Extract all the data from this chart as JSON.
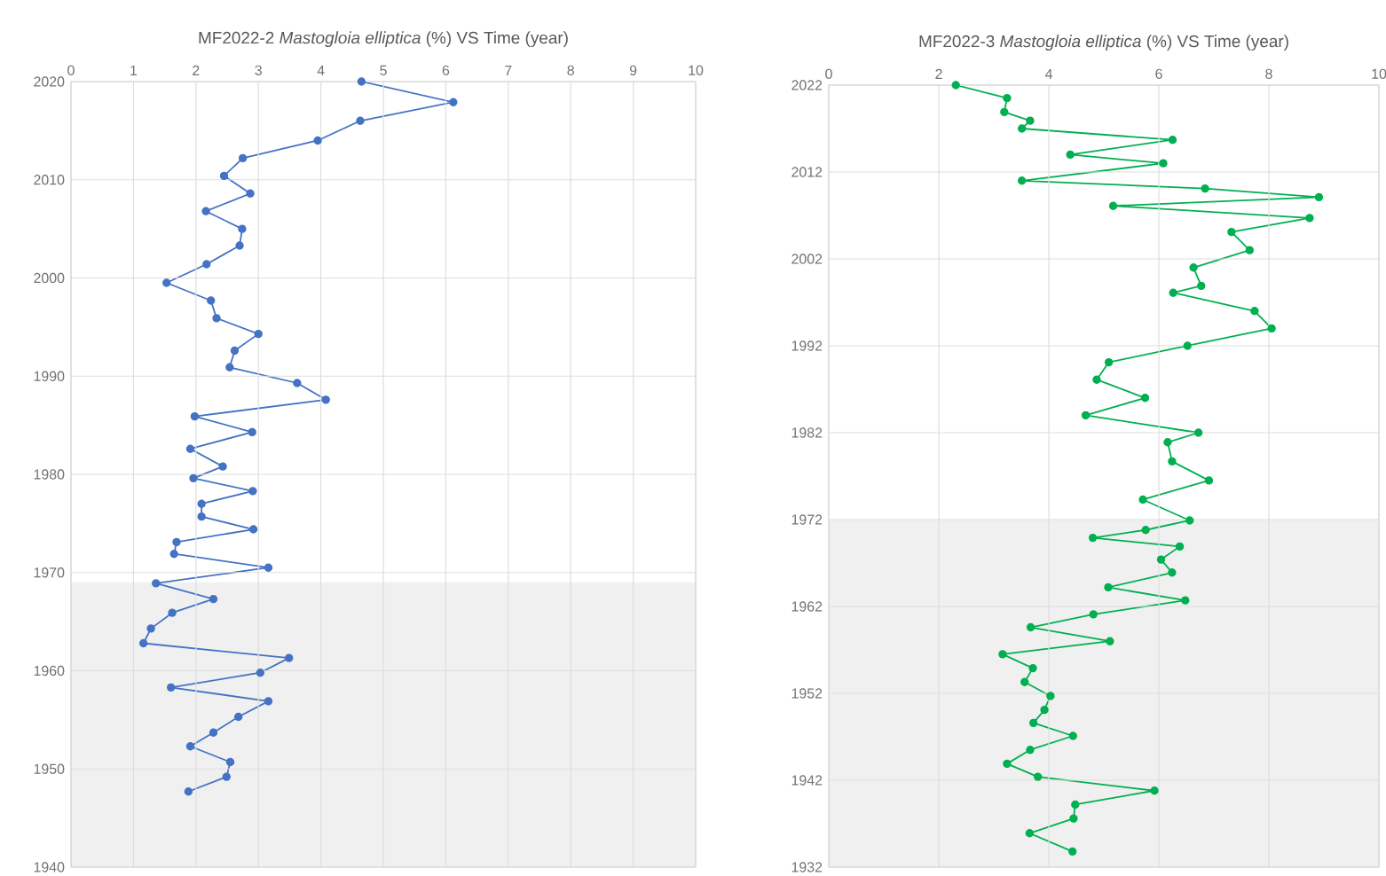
{
  "chart_data": [
    {
      "type": "line",
      "title": "MF2022-2 *Mastogloia elliptica* (%) VS Time (year)",
      "xlim": [
        0,
        10
      ],
      "xticks": [
        0,
        1,
        2,
        3,
        4,
        5,
        6,
        7,
        8,
        9,
        10
      ],
      "ylim": [
        1940,
        2020
      ],
      "yticks": [
        1940,
        1950,
        1960,
        1970,
        1980,
        1990,
        2000,
        2010,
        2020
      ],
      "grid": true,
      "marker": "circle",
      "line_style": "solid",
      "bands": [
        {
          "axis": "y",
          "from": 1940,
          "to": 1969,
          "color": "#f0f0f0"
        }
      ],
      "series": [
        {
          "color": "#4472c4",
          "x": [
            4.65,
            6.12,
            4.63,
            3.95,
            2.75,
            2.45,
            2.87,
            2.16,
            2.74,
            2.7,
            2.17,
            1.53,
            2.24,
            2.33,
            3.0,
            2.62,
            2.54,
            3.62,
            4.08,
            1.98,
            2.9,
            1.91,
            2.43,
            1.96,
            2.91,
            2.09,
            2.09,
            2.92,
            1.69,
            1.65,
            3.16,
            1.36,
            2.28,
            1.62,
            1.28,
            1.16,
            3.49,
            3.03,
            1.6,
            3.16,
            2.68,
            2.28,
            1.91,
            2.55,
            2.49,
            1.88
          ],
          "values": [
            2020.0,
            2017.9,
            2016.0,
            2014.0,
            2012.2,
            2010.4,
            2008.6,
            2006.8,
            2005.0,
            2003.3,
            2001.4,
            1999.5,
            1997.7,
            1995.9,
            1994.3,
            1992.6,
            1990.9,
            1989.3,
            1987.6,
            1985.9,
            1984.3,
            1982.6,
            1980.8,
            1979.6,
            1978.3,
            1977.0,
            1975.7,
            1974.4,
            1973.1,
            1971.9,
            1970.5,
            1968.9,
            1967.3,
            1965.9,
            1964.3,
            1962.8,
            1961.3,
            1959.8,
            1958.3,
            1956.9,
            1955.3,
            1953.7,
            1952.3,
            1950.7,
            1949.2,
            1947.7
          ]
        }
      ]
    },
    {
      "type": "line",
      "title": "MF2022-3 *Mastogloia elliptica* (%) VS Time (year)",
      "xlim": [
        0,
        10
      ],
      "xticks": [
        0,
        2,
        4,
        6,
        8,
        10
      ],
      "ylim": [
        1932,
        2022
      ],
      "yticks": [
        1932,
        1942,
        1952,
        1962,
        1972,
        1982,
        1992,
        2002,
        2012,
        2022
      ],
      "grid": true,
      "marker": "circle",
      "line_style": "solid",
      "bands": [
        {
          "axis": "y",
          "from": 1932,
          "to": 1972,
          "color": "#f0f0f0"
        }
      ],
      "series": [
        {
          "color": "#00b050",
          "x": [
            2.31,
            3.24,
            3.19,
            3.66,
            3.51,
            6.25,
            4.39,
            6.08,
            3.51,
            6.84,
            8.91,
            5.17,
            8.74,
            7.32,
            7.65,
            6.63,
            6.77,
            6.26,
            7.74,
            8.05,
            6.52,
            5.09,
            4.87,
            5.75,
            4.67,
            6.72,
            6.16,
            6.24,
            6.91,
            5.71,
            6.56,
            5.76,
            4.8,
            6.38,
            6.04,
            6.24,
            5.08,
            6.48,
            4.81,
            3.67,
            5.11,
            3.16,
            3.71,
            3.56,
            4.03,
            3.92,
            3.72,
            4.44,
            3.66,
            3.24,
            3.8,
            5.92,
            4.48,
            4.45,
            3.65,
            4.43
          ],
          "values": [
            2022.0,
            2020.5,
            2018.9,
            2017.9,
            2017.0,
            2015.7,
            2014.0,
            2013.0,
            2011.0,
            2010.1,
            2009.1,
            2008.1,
            2006.7,
            2005.1,
            2003.0,
            2001.0,
            1998.9,
            1998.1,
            1996.0,
            1994.0,
            1992.0,
            1990.1,
            1988.1,
            1986.0,
            1984.0,
            1982.0,
            1980.9,
            1978.7,
            1976.5,
            1974.3,
            1971.9,
            1970.8,
            1969.9,
            1968.9,
            1967.4,
            1965.9,
            1964.2,
            1962.7,
            1961.1,
            1959.6,
            1958.0,
            1956.5,
            1954.9,
            1953.3,
            1951.7,
            1950.1,
            1948.6,
            1947.1,
            1945.5,
            1943.9,
            1942.4,
            1940.8,
            1939.2,
            1937.6,
            1935.9,
            1933.8
          ]
        }
      ]
    }
  ]
}
